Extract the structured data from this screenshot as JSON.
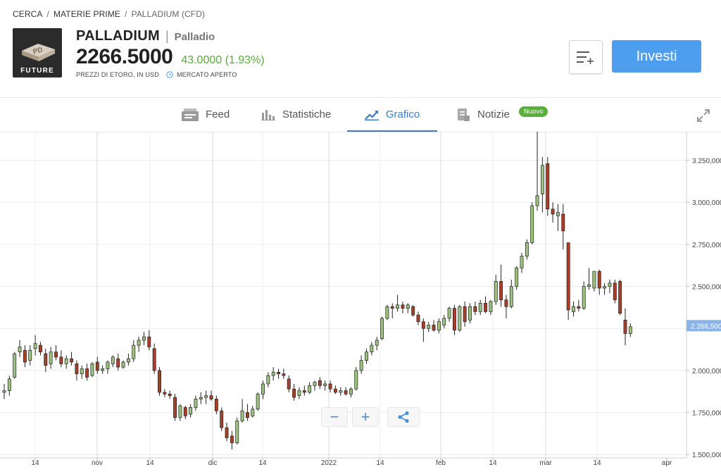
{
  "breadcrumb": {
    "items": [
      "CERCA",
      "MATERIE PRIME",
      "PALLADIUM (CFD)"
    ]
  },
  "instrument": {
    "logo_symbol": "PD",
    "logo_label": "FUTURE",
    "name": "PALLADIUM",
    "full_name": "Palladio",
    "price": "2266.5000",
    "change": "43.0000 (1.93%)",
    "price_note": "PREZZI DI ETORO, IN USD",
    "market_status": "MERCATO APERTO"
  },
  "actions": {
    "watchlist_icon": "add-to-list-icon",
    "invest_label": "Investi"
  },
  "tabs": [
    {
      "label": "Feed",
      "icon": "feed-icon"
    },
    {
      "label": "Statistiche",
      "icon": "bar-chart-icon"
    },
    {
      "label": "Grafico",
      "icon": "trend-chart-icon",
      "active": true
    },
    {
      "label": "Notizie",
      "icon": "news-icon",
      "badge": "Nuovo"
    }
  ],
  "colors": {
    "accent": "#3d7cc5",
    "invest": "#4e9ef0",
    "up": "#9cc27e",
    "down": "#a6402b",
    "positive_text": "#5aab3c",
    "badge": "#5aae3c",
    "price_tag": "#8ab4e8"
  },
  "chart_controls": {
    "zoom_out": "−",
    "zoom_in": "+",
    "share_icon": "share-icon"
  },
  "chart_data": {
    "type": "candlestick",
    "x_labels": [
      "14",
      "nov",
      "14",
      "dic",
      "14",
      "2022",
      "14",
      "feb",
      "14",
      "mar",
      "14",
      "apr"
    ],
    "y_ticks": [
      1500,
      1750,
      2000,
      2250,
      2500,
      2750,
      3000,
      3250
    ],
    "y_tick_labels": [
      "1.500,000",
      "1.750,000",
      "2.000,000",
      "2.250,000",
      "2.500,000",
      "2.750,000",
      "3.000,000",
      "3.250,000"
    ],
    "ylim": [
      1480,
      3420
    ],
    "current_price_label": "2.266,500",
    "current_price": 2266.5,
    "grid": true,
    "candles": [
      {
        "o": 1870,
        "h": 1920,
        "l": 1830,
        "c": 1880
      },
      {
        "o": 1880,
        "h": 1970,
        "l": 1850,
        "c": 1950
      },
      {
        "o": 1960,
        "h": 2110,
        "l": 1950,
        "c": 2100
      },
      {
        "o": 2110,
        "h": 2180,
        "l": 2080,
        "c": 2140
      },
      {
        "o": 2120,
        "h": 2150,
        "l": 2020,
        "c": 2050
      },
      {
        "o": 2060,
        "h": 2150,
        "l": 2030,
        "c": 2120
      },
      {
        "o": 2130,
        "h": 2210,
        "l": 2090,
        "c": 2160
      },
      {
        "o": 2150,
        "h": 2170,
        "l": 2090,
        "c": 2110
      },
      {
        "o": 2100,
        "h": 2130,
        "l": 1990,
        "c": 2030
      },
      {
        "o": 2040,
        "h": 2140,
        "l": 2010,
        "c": 2110
      },
      {
        "o": 2110,
        "h": 2150,
        "l": 2060,
        "c": 2080
      },
      {
        "o": 2080,
        "h": 2120,
        "l": 2020,
        "c": 2040
      },
      {
        "o": 2040,
        "h": 2090,
        "l": 2010,
        "c": 2070
      },
      {
        "o": 2070,
        "h": 2110,
        "l": 2030,
        "c": 2050
      },
      {
        "o": 2040,
        "h": 2060,
        "l": 1940,
        "c": 1980
      },
      {
        "o": 1980,
        "h": 2030,
        "l": 1950,
        "c": 2010
      },
      {
        "o": 2010,
        "h": 2040,
        "l": 1940,
        "c": 1960
      },
      {
        "o": 1970,
        "h": 2050,
        "l": 1960,
        "c": 2040
      },
      {
        "o": 2050,
        "h": 2080,
        "l": 1980,
        "c": 2000
      },
      {
        "o": 2000,
        "h": 2030,
        "l": 1980,
        "c": 2010
      },
      {
        "o": 2010,
        "h": 2060,
        "l": 1980,
        "c": 2050
      },
      {
        "o": 2040,
        "h": 2090,
        "l": 2020,
        "c": 2080
      },
      {
        "o": 2070,
        "h": 2100,
        "l": 2000,
        "c": 2020
      },
      {
        "o": 2020,
        "h": 2060,
        "l": 2010,
        "c": 2050
      },
      {
        "o": 2050,
        "h": 2100,
        "l": 2030,
        "c": 2070
      },
      {
        "o": 2070,
        "h": 2180,
        "l": 2050,
        "c": 2150
      },
      {
        "o": 2150,
        "h": 2200,
        "l": 2110,
        "c": 2180
      },
      {
        "o": 2180,
        "h": 2230,
        "l": 2150,
        "c": 2200
      },
      {
        "o": 2200,
        "h": 2240,
        "l": 2120,
        "c": 2140
      },
      {
        "o": 2130,
        "h": 2160,
        "l": 1980,
        "c": 2000
      },
      {
        "o": 2000,
        "h": 2020,
        "l": 1850,
        "c": 1870
      },
      {
        "o": 1870,
        "h": 1890,
        "l": 1840,
        "c": 1860
      },
      {
        "o": 1860,
        "h": 1880,
        "l": 1830,
        "c": 1850
      },
      {
        "o": 1840,
        "h": 1860,
        "l": 1700,
        "c": 1720
      },
      {
        "o": 1720,
        "h": 1800,
        "l": 1700,
        "c": 1790
      },
      {
        "o": 1780,
        "h": 1790,
        "l": 1710,
        "c": 1730
      },
      {
        "o": 1740,
        "h": 1800,
        "l": 1720,
        "c": 1780
      },
      {
        "o": 1780,
        "h": 1850,
        "l": 1760,
        "c": 1830
      },
      {
        "o": 1830,
        "h": 1870,
        "l": 1800,
        "c": 1840
      },
      {
        "o": 1840,
        "h": 1880,
        "l": 1800,
        "c": 1850
      },
      {
        "o": 1850,
        "h": 1880,
        "l": 1820,
        "c": 1830
      },
      {
        "o": 1830,
        "h": 1850,
        "l": 1740,
        "c": 1760
      },
      {
        "o": 1760,
        "h": 1780,
        "l": 1640,
        "c": 1660
      },
      {
        "o": 1660,
        "h": 1690,
        "l": 1580,
        "c": 1600
      },
      {
        "o": 1610,
        "h": 1640,
        "l": 1530,
        "c": 1570
      },
      {
        "o": 1570,
        "h": 1720,
        "l": 1560,
        "c": 1700
      },
      {
        "o": 1700,
        "h": 1830,
        "l": 1690,
        "c": 1760
      },
      {
        "o": 1750,
        "h": 1800,
        "l": 1700,
        "c": 1720
      },
      {
        "o": 1730,
        "h": 1790,
        "l": 1720,
        "c": 1770
      },
      {
        "o": 1770,
        "h": 1870,
        "l": 1760,
        "c": 1860
      },
      {
        "o": 1860,
        "h": 1940,
        "l": 1830,
        "c": 1920
      },
      {
        "o": 1920,
        "h": 1990,
        "l": 1900,
        "c": 1970
      },
      {
        "o": 1970,
        "h": 2020,
        "l": 1940,
        "c": 1990
      },
      {
        "o": 1990,
        "h": 2010,
        "l": 1950,
        "c": 1980
      },
      {
        "o": 1980,
        "h": 2010,
        "l": 1950,
        "c": 1970
      },
      {
        "o": 1950,
        "h": 1970,
        "l": 1870,
        "c": 1890
      },
      {
        "o": 1890,
        "h": 1920,
        "l": 1820,
        "c": 1840
      },
      {
        "o": 1850,
        "h": 1900,
        "l": 1830,
        "c": 1880
      },
      {
        "o": 1880,
        "h": 1910,
        "l": 1850,
        "c": 1870
      },
      {
        "o": 1870,
        "h": 1930,
        "l": 1860,
        "c": 1910
      },
      {
        "o": 1910,
        "h": 1940,
        "l": 1880,
        "c": 1930
      },
      {
        "o": 1940,
        "h": 1960,
        "l": 1890,
        "c": 1910
      },
      {
        "o": 1910,
        "h": 1940,
        "l": 1880,
        "c": 1920
      },
      {
        "o": 1920,
        "h": 1940,
        "l": 1870,
        "c": 1890
      },
      {
        "o": 1890,
        "h": 1910,
        "l": 1860,
        "c": 1870
      },
      {
        "o": 1870,
        "h": 1900,
        "l": 1850,
        "c": 1880
      },
      {
        "o": 1880,
        "h": 1900,
        "l": 1850,
        "c": 1860
      },
      {
        "o": 1860,
        "h": 1900,
        "l": 1840,
        "c": 1890
      },
      {
        "o": 1890,
        "h": 2020,
        "l": 1880,
        "c": 2000
      },
      {
        "o": 2000,
        "h": 2090,
        "l": 1980,
        "c": 2060
      },
      {
        "o": 2060,
        "h": 2130,
        "l": 2040,
        "c": 2110
      },
      {
        "o": 2110,
        "h": 2170,
        "l": 2090,
        "c": 2150
      },
      {
        "o": 2150,
        "h": 2200,
        "l": 2120,
        "c": 2180
      },
      {
        "o": 2190,
        "h": 2320,
        "l": 2180,
        "c": 2310
      },
      {
        "o": 2310,
        "h": 2390,
        "l": 2300,
        "c": 2380
      },
      {
        "o": 2380,
        "h": 2400,
        "l": 2310,
        "c": 2370
      },
      {
        "o": 2370,
        "h": 2450,
        "l": 2350,
        "c": 2390
      },
      {
        "o": 2390,
        "h": 2410,
        "l": 2340,
        "c": 2370
      },
      {
        "o": 2370,
        "h": 2400,
        "l": 2340,
        "c": 2390
      },
      {
        "o": 2380,
        "h": 2390,
        "l": 2320,
        "c": 2330
      },
      {
        "o": 2330,
        "h": 2350,
        "l": 2270,
        "c": 2290
      },
      {
        "o": 2290,
        "h": 2310,
        "l": 2170,
        "c": 2250
      },
      {
        "o": 2250,
        "h": 2290,
        "l": 2230,
        "c": 2270
      },
      {
        "o": 2270,
        "h": 2300,
        "l": 2230,
        "c": 2240
      },
      {
        "o": 2240,
        "h": 2310,
        "l": 2220,
        "c": 2290
      },
      {
        "o": 2270,
        "h": 2330,
        "l": 2250,
        "c": 2310
      },
      {
        "o": 2310,
        "h": 2380,
        "l": 2290,
        "c": 2370
      },
      {
        "o": 2370,
        "h": 2390,
        "l": 2210,
        "c": 2240
      },
      {
        "o": 2240,
        "h": 2390,
        "l": 2230,
        "c": 2380
      },
      {
        "o": 2380,
        "h": 2410,
        "l": 2260,
        "c": 2290
      },
      {
        "o": 2300,
        "h": 2400,
        "l": 2280,
        "c": 2380
      },
      {
        "o": 2380,
        "h": 2410,
        "l": 2330,
        "c": 2350
      },
      {
        "o": 2350,
        "h": 2420,
        "l": 2330,
        "c": 2400
      },
      {
        "o": 2400,
        "h": 2440,
        "l": 2340,
        "c": 2350
      },
      {
        "o": 2350,
        "h": 2420,
        "l": 2330,
        "c": 2410
      },
      {
        "o": 2410,
        "h": 2570,
        "l": 2390,
        "c": 2530
      },
      {
        "o": 2530,
        "h": 2630,
        "l": 2380,
        "c": 2420
      },
      {
        "o": 2420,
        "h": 2450,
        "l": 2310,
        "c": 2380
      },
      {
        "o": 2380,
        "h": 2540,
        "l": 2370,
        "c": 2500
      },
      {
        "o": 2500,
        "h": 2620,
        "l": 2480,
        "c": 2610
      },
      {
        "o": 2610,
        "h": 2700,
        "l": 2580,
        "c": 2680
      },
      {
        "o": 2680,
        "h": 2780,
        "l": 2660,
        "c": 2760
      },
      {
        "o": 2760,
        "h": 3000,
        "l": 2750,
        "c": 2980
      },
      {
        "o": 2980,
        "h": 3420,
        "l": 2950,
        "c": 3040
      },
      {
        "o": 3050,
        "h": 3270,
        "l": 2940,
        "c": 3220
      },
      {
        "o": 3230,
        "h": 3270,
        "l": 2920,
        "c": 2960
      },
      {
        "o": 2960,
        "h": 3000,
        "l": 2880,
        "c": 2930
      },
      {
        "o": 2920,
        "h": 2990,
        "l": 2830,
        "c": 2940
      },
      {
        "o": 2930,
        "h": 2990,
        "l": 2720,
        "c": 2830
      },
      {
        "o": 2760,
        "h": 2760,
        "l": 2300,
        "c": 2360
      },
      {
        "o": 2350,
        "h": 2410,
        "l": 2320,
        "c": 2380
      },
      {
        "o": 2380,
        "h": 2420,
        "l": 2350,
        "c": 2370
      },
      {
        "o": 2370,
        "h": 2530,
        "l": 2360,
        "c": 2500
      },
      {
        "o": 2500,
        "h": 2610,
        "l": 2480,
        "c": 2510
      },
      {
        "o": 2490,
        "h": 2590,
        "l": 2470,
        "c": 2590
      },
      {
        "o": 2590,
        "h": 2600,
        "l": 2450,
        "c": 2490
      },
      {
        "o": 2490,
        "h": 2520,
        "l": 2450,
        "c": 2500
      },
      {
        "o": 2500,
        "h": 2540,
        "l": 2460,
        "c": 2520
      },
      {
        "o": 2520,
        "h": 2540,
        "l": 2400,
        "c": 2420
      },
      {
        "o": 2530,
        "h": 2540,
        "l": 2330,
        "c": 2340
      },
      {
        "o": 2300,
        "h": 2370,
        "l": 2150,
        "c": 2220
      },
      {
        "o": 2220,
        "h": 2280,
        "l": 2200,
        "c": 2260
      }
    ]
  }
}
